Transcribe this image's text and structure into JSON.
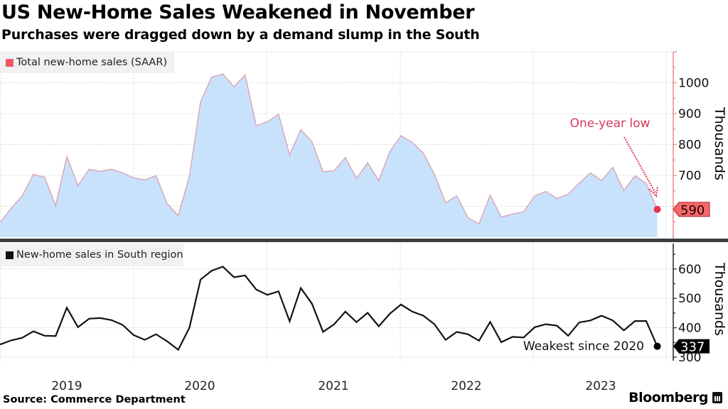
{
  "header": {
    "title": "US New-Home Sales Weakened in November",
    "subtitle": "Purchases were dragged down by a demand slump in the South"
  },
  "footer": {
    "source": "Source: Commerce Department",
    "brand": "Bloomberg"
  },
  "colors": {
    "upper_fill": "#c9e2fb",
    "upper_line": "#d9a3b6",
    "upper_accent": "#e8334f",
    "upper_tag": "#f2696c",
    "upper_axis": "#e68a8a",
    "lower_line": "#111111",
    "separator": "#3a3f44",
    "grid": "#d8d8d8"
  },
  "chart_data": [
    {
      "type": "area",
      "title": "Total new-home sales (SAAR)",
      "legend": "Total new-home sales (SAAR)",
      "legend_position": "top-left",
      "ylabel": "Thousands",
      "ylim": [
        500,
        1100
      ],
      "yticks": [
        600,
        700,
        800,
        900,
        1000
      ],
      "ytick_labels_shown": [
        "700",
        "800",
        "900",
        "1000"
      ],
      "x_tick_labels": [
        "2019",
        "2020",
        "2021",
        "2022",
        "2023"
      ],
      "x_start": "2018-12",
      "x_end": "2023-11",
      "frequency": "monthly",
      "grid": true,
      "values": [
        547,
        593,
        634,
        703,
        694,
        602,
        761,
        667,
        720,
        713,
        720,
        708,
        692,
        685,
        699,
        609,
        570,
        697,
        938,
        1018,
        1028,
        987,
        1025,
        861,
        873,
        898,
        766,
        848,
        809,
        712,
        715,
        758,
        690,
        741,
        683,
        778,
        828,
        807,
        772,
        703,
        611,
        634,
        563,
        543,
        636,
        565,
        575,
        582,
        634,
        648,
        625,
        639,
        675,
        708,
        683,
        726,
        651,
        699,
        674,
        590
      ],
      "last_value_label": "590",
      "annotation": "One-year low"
    },
    {
      "type": "line",
      "title": "New-home sales in South region",
      "legend": "New-home sales in South region",
      "legend_position": "top-left",
      "ylabel": "Thousands",
      "ylim": [
        290,
        690
      ],
      "yticks": [
        300,
        400,
        500,
        600
      ],
      "ytick_labels_shown": [
        "400",
        "500",
        "600"
      ],
      "x_tick_labels": [
        "2019",
        "2020",
        "2021",
        "2022",
        "2023"
      ],
      "x_start": "2018-12",
      "x_end": "2023-11",
      "frequency": "monthly",
      "grid": true,
      "values": [
        343,
        357,
        366,
        388,
        373,
        372,
        468,
        402,
        431,
        433,
        426,
        410,
        375,
        359,
        378,
        354,
        325,
        400,
        564,
        594,
        608,
        572,
        578,
        530,
        512,
        524,
        422,
        535,
        482,
        386,
        412,
        455,
        419,
        451,
        405,
        448,
        479,
        455,
        441,
        412,
        359,
        386,
        378,
        356,
        420,
        351,
        369,
        367,
        402,
        412,
        407,
        373,
        418,
        425,
        441,
        425,
        391,
        423,
        423,
        337
      ],
      "last_value_label": "337",
      "annotation": "Weakest since 2020"
    }
  ]
}
